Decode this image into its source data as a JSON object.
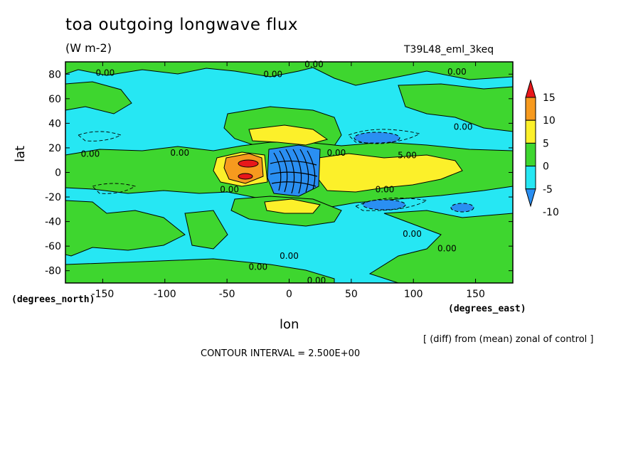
{
  "chart_data": {
    "type": "heatmap",
    "title": "toa outgoing longwave flux",
    "units": "(W m-2)",
    "run_name": "T39L48_eml_3keq",
    "xlabel": "lon",
    "ylabel": "lat",
    "x_units_label": "(degrees_east)",
    "y_units_label": "(degrees_north)",
    "xlim": [
      -180,
      180
    ],
    "ylim": [
      -90,
      90
    ],
    "x_ticks": [
      -150,
      -100,
      -50,
      0,
      50,
      100,
      150
    ],
    "x_tick_labels": [
      "-150",
      "-100",
      "-50",
      "0",
      "50",
      "100",
      "150"
    ],
    "y_ticks": [
      80,
      60,
      40,
      20,
      0,
      -20,
      -40,
      -60,
      -80
    ],
    "y_tick_labels": [
      "80",
      "60",
      "40",
      "20",
      "0",
      "-20",
      "-40",
      "-60",
      "-80"
    ],
    "colorbar": {
      "levels": [
        15,
        10,
        5,
        0,
        -5,
        -10
      ],
      "labels": [
        "15",
        "10",
        "5",
        "0",
        "-5",
        "-10"
      ],
      "colors": [
        "#e8171a",
        "#f79a1e",
        "#fcf02a",
        "#3ed62f",
        "#26e7f3",
        "#2a8ff2"
      ],
      "above_color": "#e8171a",
      "below_color": "#2a8ff2"
    },
    "contour_interval": "CONTOUR INTERVAL = 2.500E+00",
    "contour_labels": [
      {
        "text": "0.00",
        "lon": -148,
        "lat": 81
      },
      {
        "text": "0.00",
        "lon": 20,
        "lat": 88
      },
      {
        "text": "0.00",
        "lon": -13,
        "lat": 80
      },
      {
        "text": "0.00",
        "lon": 135,
        "lat": 82
      },
      {
        "text": "0.00",
        "lon": 140,
        "lat": 37
      },
      {
        "text": "0.00",
        "lon": -160,
        "lat": 15
      },
      {
        "text": "0.00",
        "lon": -88,
        "lat": 16
      },
      {
        "text": "0.00",
        "lon": 38,
        "lat": 16
      },
      {
        "text": "5.00",
        "lon": 95,
        "lat": 14
      },
      {
        "text": "0.00",
        "lon": -48,
        "lat": -14
      },
      {
        "text": "0.00",
        "lon": 77,
        "lat": -14
      },
      {
        "text": "0.00",
        "lon": 99,
        "lat": -50
      },
      {
        "text": "0.00",
        "lon": 127,
        "lat": -62
      },
      {
        "text": "0.00",
        "lon": 0,
        "lat": -68
      },
      {
        "text": "0.00",
        "lon": -25,
        "lat": -77
      },
      {
        "text": "0.00",
        "lon": 22,
        "lat": -88
      }
    ],
    "footnote": "[ (diff) from (mean) zonal of control ]"
  }
}
